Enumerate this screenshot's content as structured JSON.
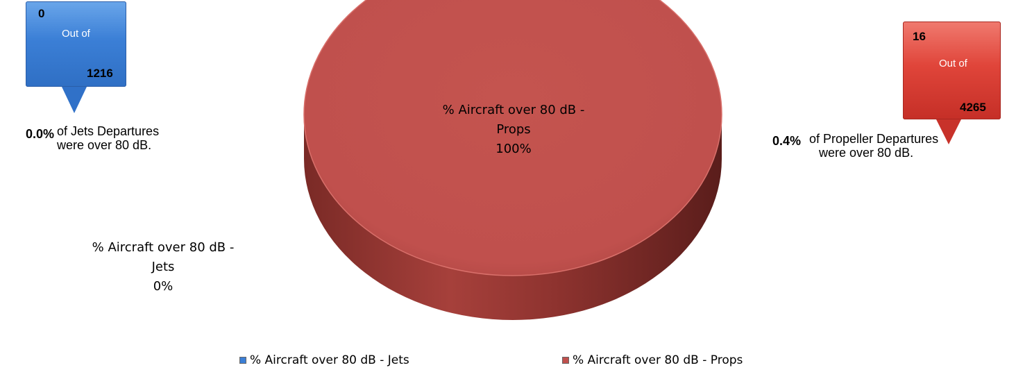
{
  "chart_data": {
    "type": "pie",
    "slices": [
      {
        "label": "% Aircraft over 80 dB - Jets",
        "value": 0,
        "display": "0%"
      },
      {
        "label": "% Aircraft over 80 dB - Props",
        "value": 100,
        "display": "100%"
      }
    ],
    "data_labels": {
      "props": {
        "line1": "% Aircraft over 80 dB -",
        "line2": "Props",
        "value": "100%"
      },
      "jets": {
        "line1": "% Aircraft over 80 dB -",
        "line2": "Jets",
        "value": "0%"
      }
    },
    "legend": [
      {
        "label": "% Aircraft over 80 dB - Jets",
        "color": "#3b7fd6"
      },
      {
        "label": "% Aircraft over 80 dB - Props",
        "color": "#c0504d"
      }
    ],
    "legend_position": "bottom",
    "colors": {
      "props": "#c0504d",
      "jets": "#3b7fd6"
    }
  },
  "callouts": {
    "jets": {
      "count": "0",
      "out_of": "Out of",
      "total": "1216",
      "color": "#3b7fd6"
    },
    "props": {
      "count": "16",
      "out_of": "Out of",
      "total": "4265",
      "color": "#e0453a"
    }
  },
  "summaries": {
    "jets": {
      "percent": "0.0%",
      "line1": "of Jets Departures",
      "line2": "were over 80 dB."
    },
    "props": {
      "percent": "0.4%",
      "line1": "of  Propeller Departures",
      "line2": "were over 80 dB."
    }
  }
}
